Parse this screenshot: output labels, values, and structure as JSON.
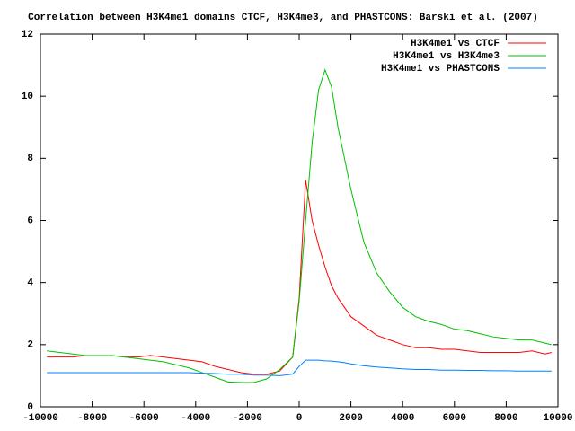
{
  "chart_data": {
    "type": "line",
    "title": "Correlation between H3K4me1 domains CTCF, H3K4me3, and PHASTCONS: Barski et al. (2007)",
    "x": [
      -9750,
      -9250,
      -8750,
      -8250,
      -7750,
      -7250,
      -6750,
      -6250,
      -5750,
      -5250,
      -4750,
      -4250,
      -3750,
      -3250,
      -2750,
      -2250,
      -1750,
      -1250,
      -750,
      -250,
      0,
      250,
      500,
      750,
      1000,
      1250,
      1500,
      1750,
      2000,
      2500,
      3000,
      3500,
      4000,
      4500,
      5000,
      5500,
      6000,
      6500,
      7000,
      7500,
      8000,
      8500,
      9000,
      9500,
      9750
    ],
    "series": [
      {
        "name": "H3K4me1 vs CTCF",
        "color": "#ff0000",
        "values": [
          1.6,
          1.6,
          1.6,
          1.65,
          1.65,
          1.65,
          1.6,
          1.6,
          1.65,
          1.6,
          1.55,
          1.5,
          1.45,
          1.3,
          1.2,
          1.1,
          1.05,
          1.05,
          1.15,
          1.6,
          3.5,
          7.3,
          6.0,
          5.2,
          4.5,
          3.9,
          3.5,
          3.2,
          2.9,
          2.6,
          2.3,
          2.15,
          2.0,
          1.9,
          1.9,
          1.85,
          1.85,
          1.8,
          1.75,
          1.75,
          1.75,
          1.75,
          1.8,
          1.7,
          1.75
        ]
      },
      {
        "name": "H3K4me1 vs H3K4me3",
        "color": "#00c000",
        "values": [
          1.8,
          1.75,
          1.7,
          1.65,
          1.65,
          1.65,
          1.6,
          1.55,
          1.5,
          1.45,
          1.35,
          1.25,
          1.1,
          0.95,
          0.8,
          0.78,
          0.78,
          0.9,
          1.2,
          1.6,
          3.4,
          6.0,
          8.5,
          10.2,
          10.85,
          10.3,
          9.0,
          8.0,
          7.0,
          5.3,
          4.3,
          3.7,
          3.2,
          2.9,
          2.75,
          2.65,
          2.5,
          2.45,
          2.35,
          2.25,
          2.2,
          2.15,
          2.15,
          2.05,
          2.0
        ]
      },
      {
        "name": "H3K4me1 vs PHASTCONS",
        "color": "#0080ff",
        "values": [
          1.1,
          1.1,
          1.1,
          1.1,
          1.1,
          1.1,
          1.1,
          1.1,
          1.1,
          1.1,
          1.1,
          1.1,
          1.08,
          1.07,
          1.05,
          1.05,
          1.02,
          1.02,
          1.0,
          1.05,
          1.3,
          1.5,
          1.5,
          1.5,
          1.48,
          1.47,
          1.45,
          1.42,
          1.38,
          1.32,
          1.28,
          1.25,
          1.22,
          1.2,
          1.2,
          1.18,
          1.18,
          1.17,
          1.17,
          1.16,
          1.16,
          1.15,
          1.15,
          1.15,
          1.15
        ]
      }
    ],
    "xlim": [
      -10000,
      10000
    ],
    "xticks": [
      -10000,
      -8000,
      -6000,
      -4000,
      -2000,
      0,
      2000,
      4000,
      6000,
      8000,
      10000
    ],
    "ylim": [
      0,
      12
    ],
    "yticks": [
      0,
      2,
      4,
      6,
      8,
      10,
      12
    ],
    "legend": "upper right"
  }
}
